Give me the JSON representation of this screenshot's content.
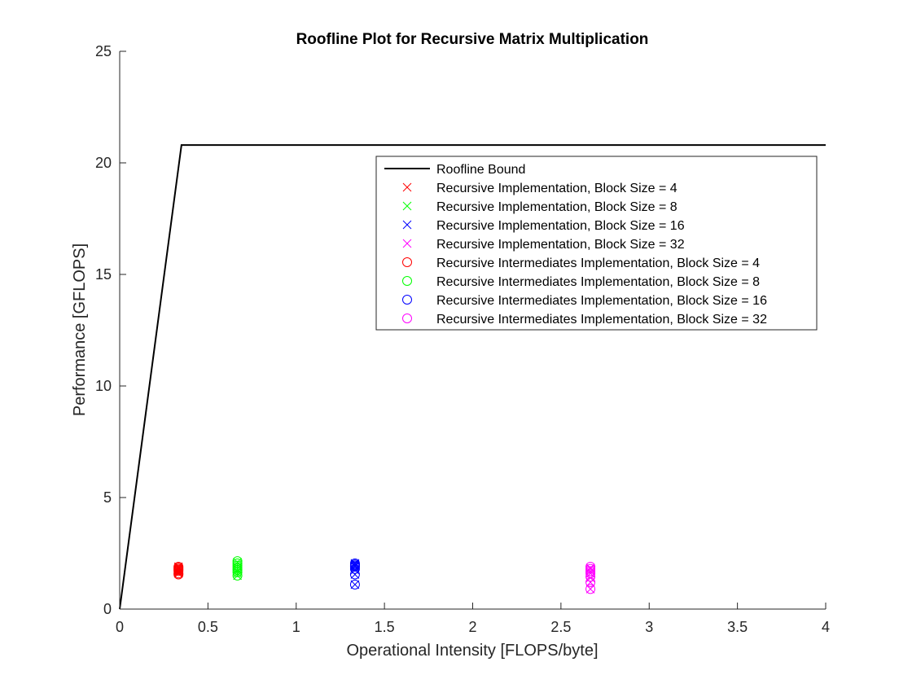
{
  "chart_data": {
    "type": "scatter",
    "title": "Roofline Plot for Recursive Matrix Multiplication",
    "xlabel": "Operational Intensity [FLOPS/byte]",
    "ylabel": "Performance [GFLOPS]",
    "xlim": [
      0,
      4
    ],
    "ylim": [
      0,
      25
    ],
    "xticks": [
      0,
      0.5,
      1,
      1.5,
      2,
      2.5,
      3,
      3.5,
      4
    ],
    "xtick_labels": [
      "0",
      "0.5",
      "1",
      "1.5",
      "2",
      "2.5",
      "3",
      "3.5",
      "4"
    ],
    "yticks": [
      0,
      5,
      10,
      15,
      20,
      25
    ],
    "ytick_labels": [
      "0",
      "5",
      "10",
      "15",
      "20",
      "25"
    ],
    "grid": false,
    "legend_position": "top-right",
    "roofline": {
      "name": "Roofline Bound",
      "color": "#000000",
      "points": [
        [
          0,
          0
        ],
        [
          0.35,
          20.8
        ],
        [
          4,
          20.8
        ]
      ]
    },
    "series": [
      {
        "name": "Recursive Implementation, Block Size = 4",
        "marker": "x",
        "color": "#ff0000",
        "x": 0.333,
        "y": [
          1.6,
          1.65,
          1.7,
          1.75,
          1.8,
          1.85,
          1.9
        ]
      },
      {
        "name": "Recursive Implementation, Block Size = 8",
        "marker": "x",
        "color": "#00ff00",
        "x": 0.667,
        "y": [
          1.5,
          1.6,
          1.7,
          1.8,
          1.9,
          2.0,
          2.1
        ]
      },
      {
        "name": "Recursive Implementation, Block Size = 16",
        "marker": "x",
        "color": "#0000ff",
        "x": 1.333,
        "y": [
          1.1,
          1.55,
          1.75,
          1.9,
          1.95,
          2.0,
          2.05
        ]
      },
      {
        "name": "Recursive Implementation, Block Size = 32",
        "marker": "x",
        "color": "#ff00ff",
        "x": 2.667,
        "y": [
          0.9,
          1.2,
          1.4,
          1.6,
          1.7,
          1.8,
          1.85
        ]
      },
      {
        "name": "Recursive Intermediates Implementation, Block Size = 4",
        "marker": "o",
        "color": "#ff0000",
        "x": 0.333,
        "y": [
          1.55,
          1.6,
          1.7,
          1.75,
          1.8,
          1.85,
          1.9
        ]
      },
      {
        "name": "Recursive Intermediates Implementation, Block Size = 8",
        "marker": "o",
        "color": "#00ff00",
        "x": 0.667,
        "y": [
          1.5,
          1.65,
          1.75,
          1.85,
          1.95,
          2.05,
          2.15
        ]
      },
      {
        "name": "Recursive Intermediates Implementation, Block Size = 16",
        "marker": "o",
        "color": "#0000ff",
        "x": 1.333,
        "y": [
          1.1,
          1.55,
          1.8,
          1.9,
          1.95,
          2.0,
          2.05
        ]
      },
      {
        "name": "Recursive Intermediates Implementation, Block Size = 32",
        "marker": "o",
        "color": "#ff00ff",
        "x": 2.667,
        "y": [
          0.9,
          1.2,
          1.45,
          1.6,
          1.7,
          1.8,
          1.9
        ]
      }
    ]
  }
}
